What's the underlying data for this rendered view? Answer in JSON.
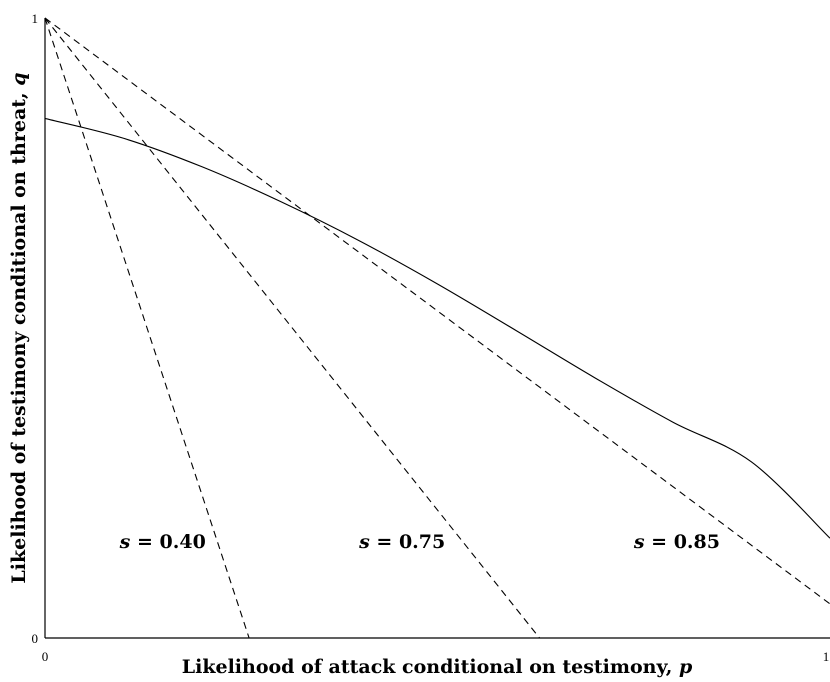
{
  "chart_data": {
    "type": "line",
    "xlabel": "Likelihood of attack conditional on testimony, ",
    "xlabel_symbol": "p",
    "ylabel": "Likelihood of testimony conditional on threat, ",
    "ylabel_symbol": "q",
    "xlim": [
      0,
      1
    ],
    "ylim": [
      0,
      1
    ],
    "x_ticks": [
      "0",
      "1"
    ],
    "y_ticks": [
      "0",
      "1"
    ],
    "grid": false,
    "colors": {
      "lines": "#000000",
      "background": "#ffffff"
    },
    "series": [
      {
        "style": "solid",
        "x": [
          0,
          0.1,
          0.2,
          0.3,
          0.4,
          0.5,
          0.6,
          0.7,
          0.8,
          0.9,
          1.0
        ],
        "y": [
          0.838,
          0.806,
          0.76,
          0.704,
          0.641,
          0.571,
          0.496,
          0.42,
          0.348,
          0.284,
          0.161
        ]
      },
      {
        "style": "dashed",
        "x": [
          0,
          0.26
        ],
        "y": [
          1,
          0
        ]
      },
      {
        "style": "dashed",
        "x": [
          0,
          0.63
        ],
        "y": [
          1,
          0
        ]
      },
      {
        "style": "dashed",
        "x": [
          0,
          1.0
        ],
        "y": [
          1,
          0.055
        ]
      }
    ],
    "annotations": [
      {
        "sym": "s",
        "text": " = 0.40",
        "x": 0.15,
        "y": 0.145
      },
      {
        "sym": "s",
        "text": " = 0.75",
        "x": 0.455,
        "y": 0.145
      },
      {
        "sym": "s",
        "text": " = 0.85",
        "x": 0.805,
        "y": 0.145
      }
    ]
  }
}
